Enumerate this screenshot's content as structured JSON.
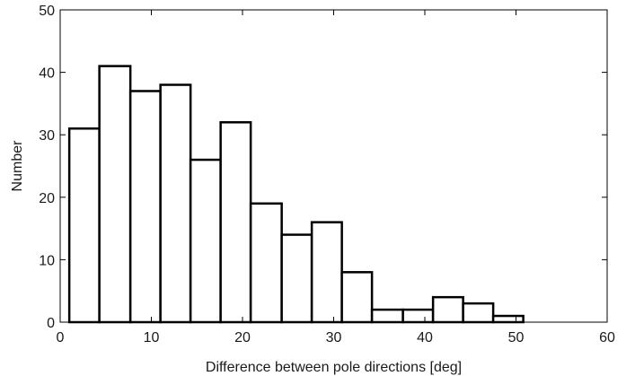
{
  "chart_data": {
    "type": "bar",
    "subtype": "histogram",
    "title": "",
    "xlabel": "Difference between pole directions [deg]",
    "ylabel": "Number",
    "xlim": [
      0,
      60
    ],
    "ylim": [
      0,
      50
    ],
    "xticks": [
      0,
      10,
      20,
      30,
      40,
      50,
      60
    ],
    "yticks": [
      0,
      10,
      20,
      30,
      40,
      50
    ],
    "grid": false,
    "bar_fill": "#ffffff",
    "bar_stroke": "#000000",
    "bins": [
      {
        "x0": 1.0,
        "x1": 4.3,
        "value": 31
      },
      {
        "x0": 4.3,
        "x1": 7.7,
        "value": 41
      },
      {
        "x0": 7.7,
        "x1": 11.0,
        "value": 37
      },
      {
        "x0": 11.0,
        "x1": 14.3,
        "value": 38
      },
      {
        "x0": 14.3,
        "x1": 17.6,
        "value": 26
      },
      {
        "x0": 17.6,
        "x1": 20.9,
        "value": 32
      },
      {
        "x0": 20.9,
        "x1": 24.3,
        "value": 19
      },
      {
        "x0": 24.3,
        "x1": 27.6,
        "value": 14
      },
      {
        "x0": 27.6,
        "x1": 30.9,
        "value": 16
      },
      {
        "x0": 30.9,
        "x1": 34.2,
        "value": 8
      },
      {
        "x0": 34.2,
        "x1": 37.6,
        "value": 2
      },
      {
        "x0": 37.6,
        "x1": 40.9,
        "value": 2
      },
      {
        "x0": 40.9,
        "x1": 44.2,
        "value": 4
      },
      {
        "x0": 44.2,
        "x1": 47.5,
        "value": 3
      },
      {
        "x0": 47.5,
        "x1": 50.8,
        "value": 1
      }
    ]
  }
}
